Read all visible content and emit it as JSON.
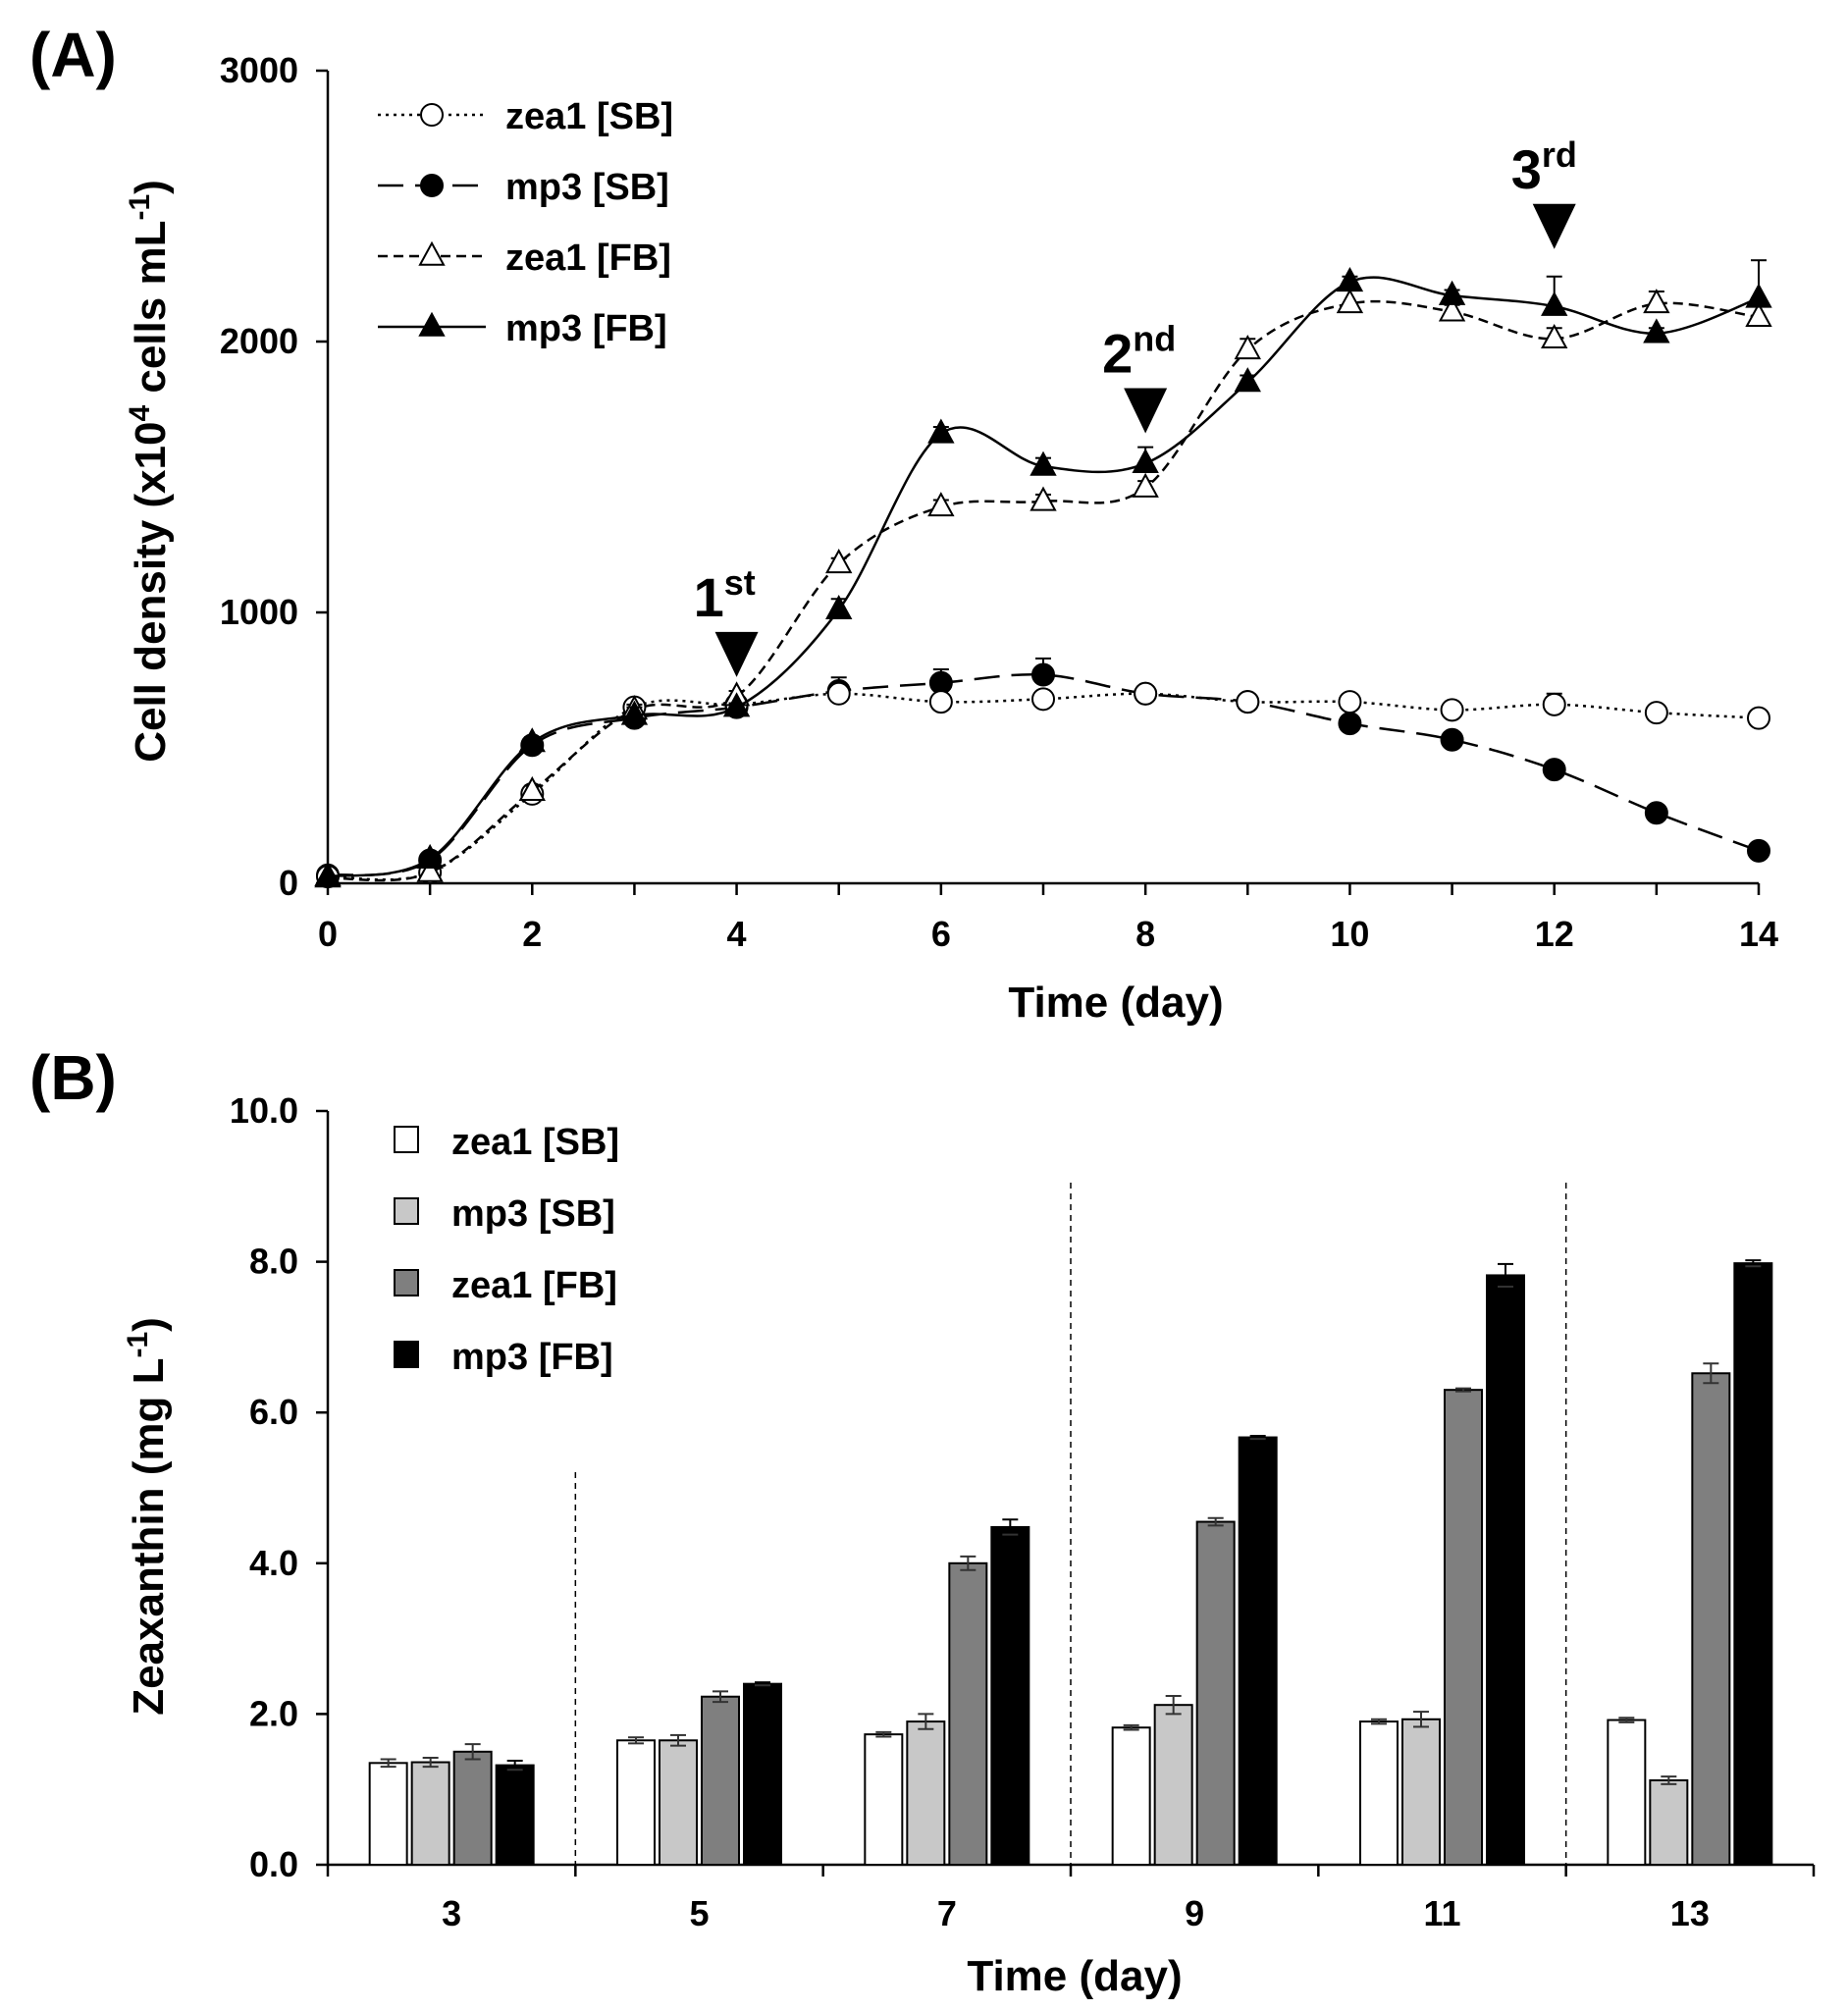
{
  "chart_data": [
    {
      "panel": "(A)",
      "type": "line",
      "xlabel": "Time (day)",
      "ylabel": "Cell density (x10",
      "ylabel_sup1": "4",
      "ylabel_mid": " cells mL",
      "ylabel_sup2": "-1",
      "ylabel_end": ")",
      "xlim": [
        0,
        14
      ],
      "ylim": [
        0,
        3000
      ],
      "xticks": [
        0,
        2,
        4,
        6,
        8,
        10,
        12,
        14
      ],
      "yticks": [
        0,
        1000,
        2000,
        3000
      ],
      "legend_position": "top-left",
      "series": [
        {
          "name": "zea1 [SB]",
          "style": "dotted",
          "marker": "circle-open",
          "x": [
            0,
            1,
            2,
            3,
            4,
            5,
            6,
            7,
            8,
            9,
            10,
            11,
            12,
            13,
            14
          ],
          "y": [
            25,
            40,
            330,
            650,
            660,
            700,
            670,
            680,
            700,
            670,
            670,
            640,
            660,
            630,
            610
          ],
          "err": [
            5,
            5,
            20,
            20,
            20,
            30,
            15,
            15,
            15,
            15,
            15,
            15,
            40,
            25,
            15
          ]
        },
        {
          "name": "mp3 [SB]",
          "style": "longdash",
          "marker": "circle-filled",
          "x": [
            0,
            1,
            2,
            3,
            4,
            5,
            6,
            7,
            8,
            9,
            10,
            11,
            12,
            13,
            14
          ],
          "y": [
            30,
            85,
            510,
            610,
            650,
            710,
            740,
            770,
            700,
            670,
            590,
            530,
            420,
            260,
            120
          ],
          "err": [
            5,
            10,
            20,
            50,
            20,
            50,
            50,
            60,
            15,
            15,
            15,
            15,
            15,
            15,
            15
          ]
        },
        {
          "name": "zea1 [FB]",
          "style": "dashed",
          "marker": "triangle-open",
          "x": [
            0,
            1,
            2,
            3,
            4,
            5,
            6,
            7,
            8,
            9,
            10,
            11,
            12,
            13,
            14
          ],
          "y": [
            20,
            40,
            340,
            640,
            690,
            1180,
            1390,
            1410,
            1460,
            1970,
            2140,
            2110,
            2010,
            2140,
            2090
          ],
          "err": [
            5,
            5,
            20,
            20,
            20,
            20,
            25,
            25,
            25,
            40,
            50,
            25,
            40,
            45,
            70
          ]
        },
        {
          "name": "mp3 [FB]",
          "style": "solid",
          "marker": "triangle-filled",
          "x": [
            0,
            1,
            2,
            3,
            4,
            5,
            6,
            7,
            8,
            9,
            10,
            11,
            12,
            13,
            14
          ],
          "y": [
            25,
            90,
            520,
            620,
            650,
            1010,
            1660,
            1540,
            1550,
            1850,
            2220,
            2170,
            2130,
            2030,
            2160
          ],
          "err": [
            5,
            10,
            20,
            30,
            15,
            40,
            25,
            30,
            60,
            25,
            20,
            20,
            110,
            20,
            140
          ]
        }
      ],
      "annotations": [
        {
          "text": "1",
          "sup": "st",
          "x": 4
        },
        {
          "text": "2",
          "sup": "nd",
          "x": 8
        },
        {
          "text": "3",
          "sup": "rd",
          "x": 12
        }
      ]
    },
    {
      "panel": "(B)",
      "type": "bar",
      "xlabel": "Time (day)",
      "ylabel": "Zeaxanthin (mg L",
      "ylabel_sup": "-1",
      "ylabel_end": ")",
      "categories": [
        "3",
        "5",
        "7",
        "9",
        "11",
        "13"
      ],
      "ylim": [
        0,
        10
      ],
      "yticks": [
        "0.0",
        "2.0",
        "4.0",
        "6.0",
        "8.0",
        "10.0"
      ],
      "legend_position": "top-left",
      "separators_after_category": [
        0,
        2,
        4
      ],
      "series": [
        {
          "name": "zea1 [SB]",
          "color": "#ffffff",
          "values": [
            1.35,
            1.65,
            1.73,
            1.82,
            1.9,
            1.92
          ],
          "err": [
            0.05,
            0.04,
            0.03,
            0.03,
            0.03,
            0.03
          ]
        },
        {
          "name": "mp3 [SB]",
          "color": "#c8c8c8",
          "values": [
            1.36,
            1.65,
            1.9,
            2.12,
            1.93,
            1.12
          ],
          "err": [
            0.06,
            0.07,
            0.1,
            0.12,
            0.1,
            0.05
          ]
        },
        {
          "name": "zea1 [FB]",
          "color": "#7f7f7f",
          "values": [
            1.5,
            2.23,
            4.0,
            4.55,
            6.3,
            6.52
          ],
          "err": [
            0.1,
            0.07,
            0.09,
            0.05,
            0.02,
            0.13
          ]
        },
        {
          "name": "mp3 [FB]",
          "color": "#000000",
          "values": [
            1.32,
            2.4,
            4.48,
            5.67,
            7.82,
            7.98
          ],
          "err": [
            0.06,
            0.02,
            0.1,
            0.02,
            0.15,
            0.04
          ]
        }
      ]
    }
  ]
}
